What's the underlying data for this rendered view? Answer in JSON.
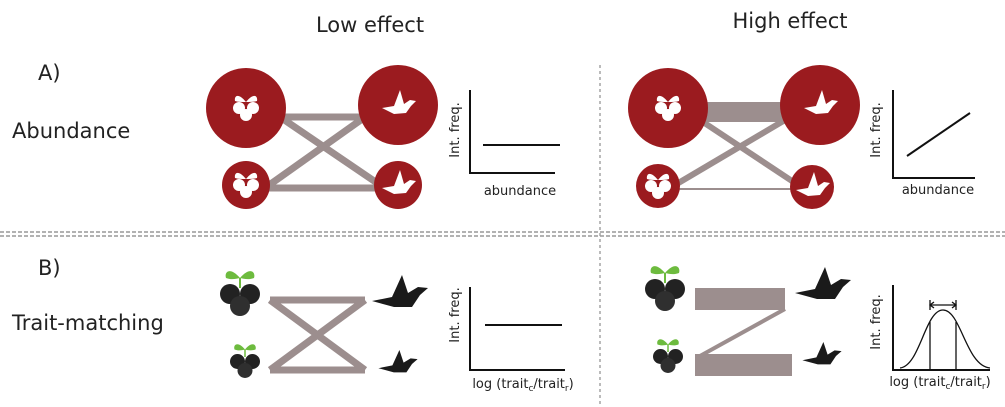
{
  "columns": [
    "Low effect",
    "High effect"
  ],
  "rows": [
    {
      "letter": "A)",
      "label": "Abundance",
      "panels": [
        {
          "ylabel": "Int. freq.",
          "xlabel": [
            "abundance"
          ]
        },
        {
          "ylabel": "Int. freq.",
          "xlabel": [
            "abundance"
          ]
        }
      ]
    },
    {
      "letter": "B)",
      "label": "Trait-matching",
      "panels": [
        {
          "ylabel": "Int. freq.",
          "xlabel": [
            "log (trait",
            "c",
            "/trait",
            "r",
            ")"
          ]
        },
        {
          "ylabel": "Int. freq.",
          "xlabel": [
            "log (trait",
            "c",
            "/trait",
            "r",
            ")"
          ]
        }
      ]
    }
  ]
}
